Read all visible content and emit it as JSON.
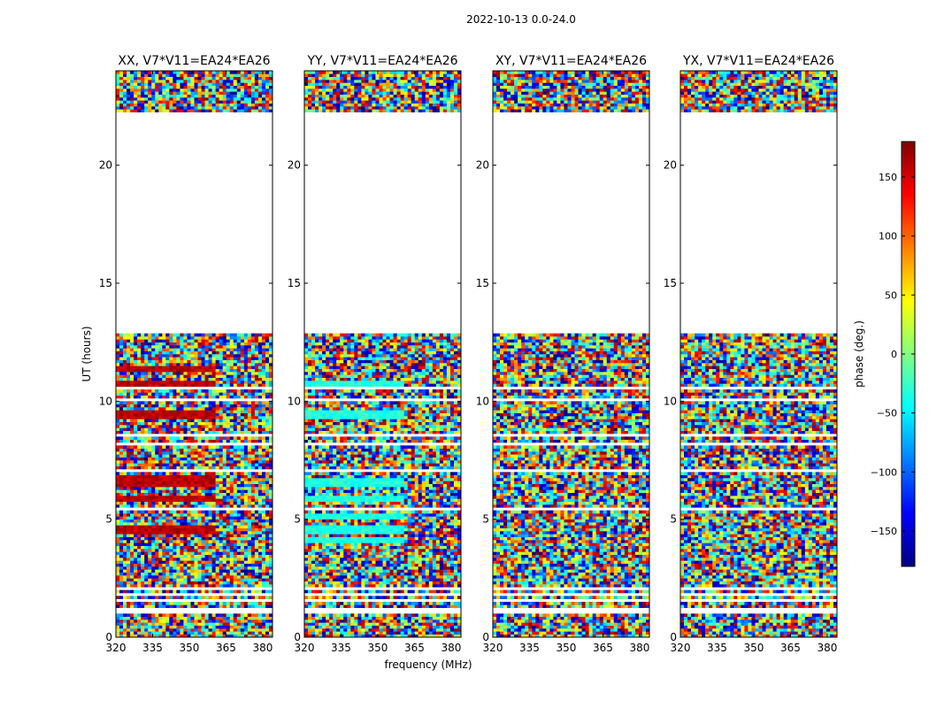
{
  "figure": {
    "suptitle": "2022-10-13 0.0-24.0"
  },
  "chart_data": {
    "type": "heatmap",
    "title": "2022-10-13 0.0-24.0",
    "xlabel": "frequency (MHz)",
    "ylabel": "UT (hours)",
    "xlim": [
      320,
      384
    ],
    "ylim": [
      0,
      24
    ],
    "xticks": [
      320,
      335,
      350,
      365,
      380
    ],
    "yticks": [
      0,
      5,
      10,
      15,
      20
    ],
    "colorbar": {
      "label": "phase (deg.)",
      "range": [
        -180,
        180
      ],
      "ticks": [
        -150,
        -100,
        -50,
        0,
        50,
        100,
        150
      ],
      "tick_labels": [
        "−150",
        "−100",
        "−50",
        "0",
        "50",
        "100",
        "150"
      ],
      "colormap": "jet",
      "colors": [
        "#00007f",
        "#0000ff",
        "#007fff",
        "#00ffff",
        "#7fff7f",
        "#ffff00",
        "#ff7f00",
        "#ff0000",
        "#7f0000"
      ]
    },
    "gaps_hours": [
      [
        1.05,
        1.3
      ],
      [
        1.5,
        1.65
      ],
      [
        1.8,
        1.88
      ],
      [
        2.05,
        2.12
      ],
      [
        3.45,
        3.5
      ],
      [
        5.4,
        5.45
      ],
      [
        7.05,
        7.15
      ],
      [
        8.15,
        8.22
      ],
      [
        8.55,
        8.6
      ],
      [
        9.08,
        9.12
      ],
      [
        9.95,
        10.12
      ],
      [
        10.55,
        10.6
      ],
      [
        11.6,
        11.65
      ],
      [
        12.2,
        12.28
      ],
      [
        12.5,
        12.55
      ],
      [
        12.9,
        22.2
      ],
      [
        22.5,
        22.56
      ],
      [
        22.85,
        22.92
      ],
      [
        23.5,
        23.55
      ]
    ],
    "panels": [
      {
        "title": "XX, V7*V11=EA24*EA26",
        "baseline_phase": 160,
        "coherent_rows": [
          [
            4.4,
            4.8
          ],
          [
            5.7,
            6.0
          ],
          [
            6.4,
            6.9
          ],
          [
            9.2,
            9.6
          ],
          [
            10.6,
            10.9
          ],
          [
            11.3,
            11.45
          ]
        ]
      },
      {
        "title": "YY, V7*V11=EA24*EA26",
        "baseline_phase": -35,
        "coherent_rows": [
          [
            4.0,
            4.3
          ],
          [
            4.4,
            4.7
          ],
          [
            5.0,
            5.25
          ],
          [
            5.7,
            6.0
          ],
          [
            6.4,
            6.8
          ],
          [
            9.2,
            9.6
          ],
          [
            10.6,
            10.9
          ]
        ]
      },
      {
        "title": "XY, V7*V11=EA24*EA26",
        "baseline_phase": null,
        "coherent_rows": []
      },
      {
        "title": "YX, V7*V11=EA24*EA26",
        "baseline_phase": null,
        "coherent_rows": []
      }
    ]
  }
}
